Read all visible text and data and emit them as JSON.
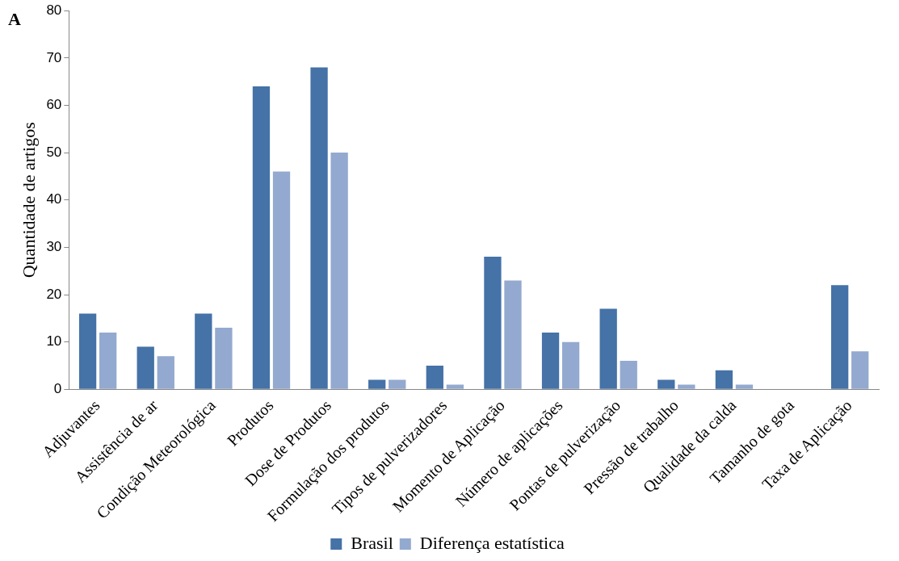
{
  "chart_data": {
    "type": "bar",
    "ylabel": "Quantidade de artigos",
    "annotations": [
      "A"
    ],
    "categories": [
      "Adjuvantes",
      "Assistência de ar",
      "Condição Meteorológica",
      "Produtos",
      "Dose de Produtos",
      "Formulação dos produtos",
      "Tipos de pulverizadores",
      "Momento de Aplicação",
      "Número de aplicações",
      "Pontas de pulverização",
      "Pressão de trabalho",
      "Qualidade da calda",
      "Tamanho de gota",
      "Taxa de Aplicação"
    ],
    "series": [
      {
        "name": "Brasil",
        "color": "#4572a7",
        "values": [
          16,
          9,
          16,
          64,
          68,
          2,
          5,
          28,
          12,
          17,
          2,
          4,
          0,
          22
        ]
      },
      {
        "name": "Diferença estatística",
        "color": "#93a9cf",
        "values": [
          12,
          7,
          13,
          46,
          50,
          2,
          1,
          23,
          10,
          6,
          1,
          1,
          0,
          8
        ]
      }
    ],
    "ylim": [
      0,
      80
    ],
    "yticks": [
      0,
      10,
      20,
      30,
      40,
      50,
      60,
      70,
      80
    ],
    "grid": false,
    "legend": "bottom"
  }
}
